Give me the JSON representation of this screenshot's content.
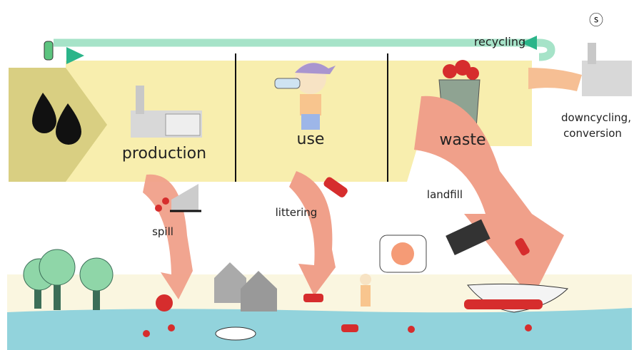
{
  "flows": {
    "recycling": "recycling",
    "downcycling": [
      "downcycling,",
      "conversion"
    ],
    "landfill": "landfill",
    "spill": "spill",
    "littering": "littering"
  },
  "stages": [
    "production",
    "use",
    "waste"
  ]
}
